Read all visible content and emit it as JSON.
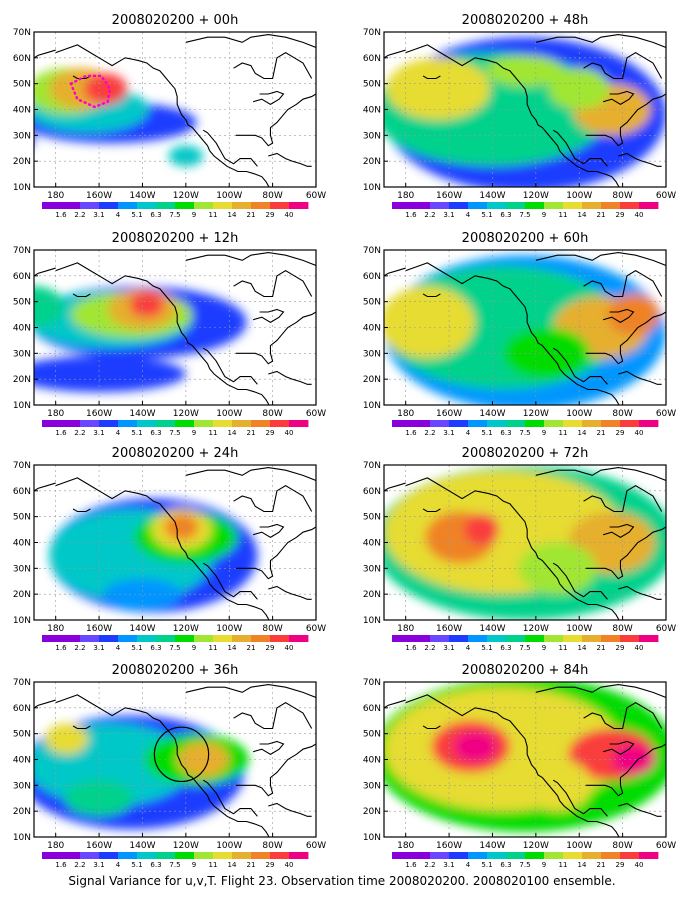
{
  "figure": {
    "caption": "Signal Variance for u,v,T. Flight 23. Observation time 2008020200. 2008020100 ensemble.",
    "colorbar": {
      "labels": [
        "1.6",
        "2.2",
        "3.1",
        "4",
        "5.1",
        "6.3",
        "7.5",
        "9",
        "11",
        "14",
        "21",
        "29",
        "40"
      ],
      "colors": [
        "#8a00dc",
        "#8a00dc",
        "#6a46ff",
        "#1e3cff",
        "#0096ff",
        "#00c8c8",
        "#00d28c",
        "#00dc00",
        "#a0e632",
        "#e6dc32",
        "#e6af2d",
        "#f08228",
        "#fa3c3c",
        "#f00082"
      ]
    },
    "lon_labels": [
      "180",
      "160W",
      "140W",
      "120W",
      "100W",
      "80W",
      "60W"
    ],
    "lat_labels": [
      "10N",
      "20N",
      "30N",
      "40N",
      "50N",
      "60N",
      "70N"
    ],
    "panels": [
      {
        "title": "2008020200 + 00h",
        "field": "00h"
      },
      {
        "title": "2008020200 + 12h",
        "field": "12h"
      },
      {
        "title": "2008020200 + 24h",
        "field": "24h"
      },
      {
        "title": "2008020200 + 36h",
        "field": "36h"
      },
      {
        "title": "2008020200 + 48h",
        "field": "48h"
      },
      {
        "title": "2008020200 + 60h",
        "field": "60h"
      },
      {
        "title": "2008020200 + 72h",
        "field": "72h"
      },
      {
        "title": "2008020200 + 84h",
        "field": "84h"
      }
    ]
  }
}
